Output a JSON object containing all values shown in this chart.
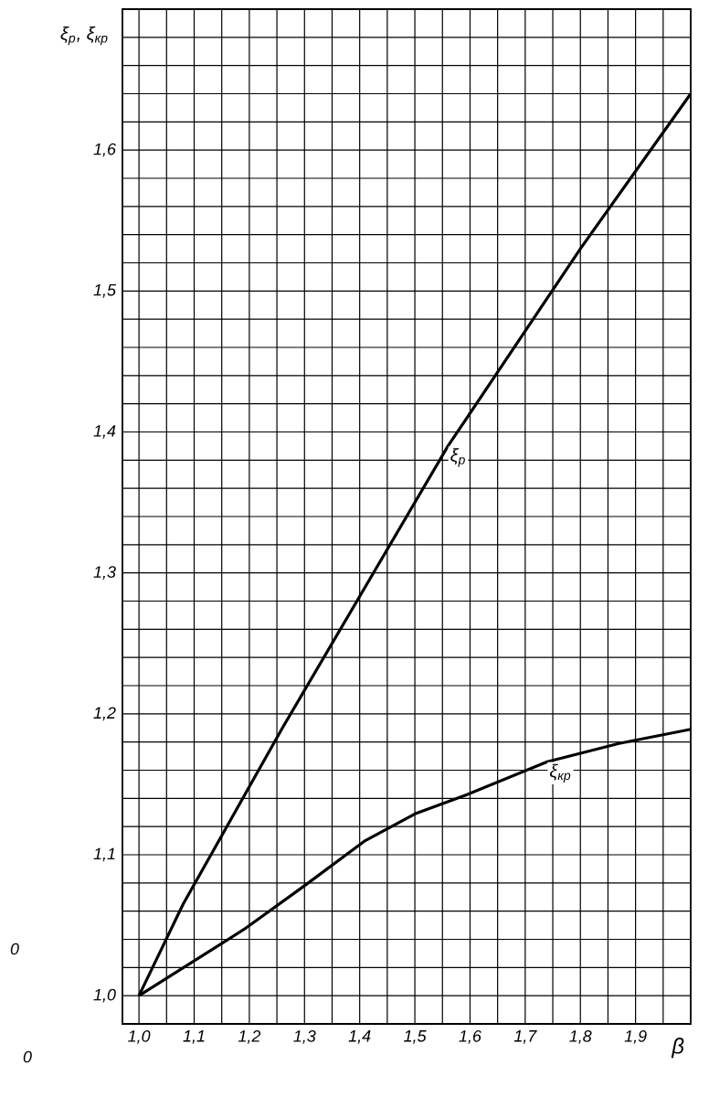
{
  "chart_data": {
    "type": "line",
    "xlabel": "β",
    "ylabel": "ξ$_{р}$, ξ$_{кр}$",
    "xlim": [
      0.97,
      2.0
    ],
    "ylim": [
      0.98,
      1.7
    ],
    "xticks": [
      {
        "value": 1.0,
        "label": "1,0"
      },
      {
        "value": 1.05,
        "label": null
      },
      {
        "value": 1.1,
        "label": "1,1"
      },
      {
        "value": 1.15,
        "label": null
      },
      {
        "value": 1.2,
        "label": "1,2"
      },
      {
        "value": 1.25,
        "label": null
      },
      {
        "value": 1.3,
        "label": "1,3"
      },
      {
        "value": 1.35,
        "label": null
      },
      {
        "value": 1.4,
        "label": "1,4"
      },
      {
        "value": 1.45,
        "label": null
      },
      {
        "value": 1.5,
        "label": "1,5"
      },
      {
        "value": 1.55,
        "label": null
      },
      {
        "value": 1.6,
        "label": "1,6"
      },
      {
        "value": 1.65,
        "label": null
      },
      {
        "value": 1.7,
        "label": "1,7"
      },
      {
        "value": 1.75,
        "label": null
      },
      {
        "value": 1.8,
        "label": "1,8"
      },
      {
        "value": 1.85,
        "label": null
      },
      {
        "value": 1.9,
        "label": "1,9"
      },
      {
        "value": 1.95,
        "label": null
      }
    ],
    "yticks": [
      {
        "value": 1.0,
        "label": "1,0"
      },
      {
        "value": 1.02,
        "label": null
      },
      {
        "value": 1.04,
        "label": null
      },
      {
        "value": 1.06,
        "label": null
      },
      {
        "value": 1.08,
        "label": null
      },
      {
        "value": 1.1,
        "label": "1,1"
      },
      {
        "value": 1.12,
        "label": null
      },
      {
        "value": 1.14,
        "label": null
      },
      {
        "value": 1.16,
        "label": null
      },
      {
        "value": 1.18,
        "label": null
      },
      {
        "value": 1.2,
        "label": "1,2"
      },
      {
        "value": 1.22,
        "label": null
      },
      {
        "value": 1.24,
        "label": null
      },
      {
        "value": 1.26,
        "label": null
      },
      {
        "value": 1.28,
        "label": null
      },
      {
        "value": 1.3,
        "label": "1,3"
      },
      {
        "value": 1.32,
        "label": null
      },
      {
        "value": 1.34,
        "label": null
      },
      {
        "value": 1.36,
        "label": null
      },
      {
        "value": 1.38,
        "label": null
      },
      {
        "value": 1.4,
        "label": "1,4"
      },
      {
        "value": 1.42,
        "label": null
      },
      {
        "value": 1.44,
        "label": null
      },
      {
        "value": 1.46,
        "label": null
      },
      {
        "value": 1.48,
        "label": null
      },
      {
        "value": 1.5,
        "label": "1,5"
      },
      {
        "value": 1.52,
        "label": null
      },
      {
        "value": 1.54,
        "label": null
      },
      {
        "value": 1.56,
        "label": null
      },
      {
        "value": 1.58,
        "label": null
      },
      {
        "value": 1.6,
        "label": "1,6"
      },
      {
        "value": 1.62,
        "label": null
      },
      {
        "value": 1.64,
        "label": null
      },
      {
        "value": 1.66,
        "label": null
      },
      {
        "value": 1.68,
        "label": null
      }
    ],
    "grid": true,
    "legend": false,
    "marker": "none",
    "line_style": "solid",
    "annotations": [
      "0",
      "0"
    ],
    "series": [
      {
        "name": "ξ$_{р}$",
        "color": "#000000",
        "x": [
          1.0,
          1.08,
          1.26,
          1.56,
          1.8,
          2.0
        ],
        "values": [
          1.0,
          1.065,
          1.19,
          1.39,
          1.53,
          1.64
        ]
      },
      {
        "name": "ξ$_{кр}$",
        "color": "#000000",
        "x": [
          1.0,
          1.19,
          1.3,
          1.41,
          1.5,
          1.59,
          1.74,
          1.87,
          2.0
        ],
        "values": [
          1.0,
          1.047,
          1.078,
          1.11,
          1.129,
          1.142,
          1.166,
          1.179,
          1.189
        ]
      }
    ]
  }
}
